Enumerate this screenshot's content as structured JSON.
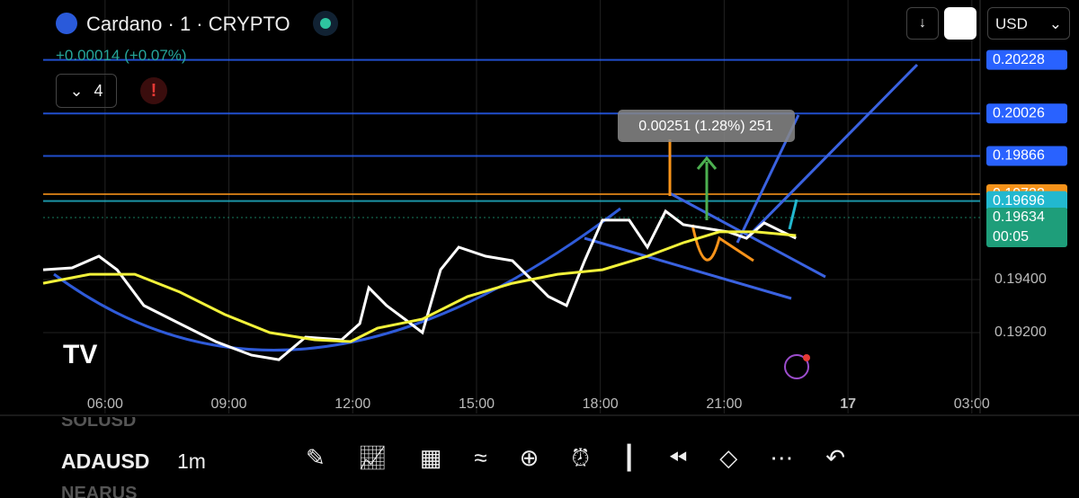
{
  "header": {
    "title": "Cardano · 1 · CRYPTO",
    "change": "+0.00014 (+0.07%)",
    "indicator_count": "4",
    "currency": "USD"
  },
  "measure_label": "0.00251 (1.28%) 251",
  "countdown": "00:05",
  "chart_data": {
    "type": "line",
    "xlim": [
      4.5,
      27.2
    ],
    "xticks": [
      {
        "value": 6,
        "label": "06:00"
      },
      {
        "value": 9,
        "label": "09:00"
      },
      {
        "value": 12,
        "label": "12:00"
      },
      {
        "value": 15,
        "label": "15:00"
      },
      {
        "value": 18,
        "label": "18:00"
      },
      {
        "value": 21,
        "label": "21:00"
      },
      {
        "value": 24,
        "label": "17"
      },
      {
        "value": 27,
        "label": "03:00"
      }
    ],
    "ylim": [
      0.18895,
      0.20454
    ],
    "yticks": [
      {
        "value": 0.192,
        "label": "0.19200"
      },
      {
        "value": 0.194,
        "label": "0.19400"
      }
    ],
    "grid": true,
    "series": [
      {
        "color": "#ffffff",
        "x": [
          4.5,
          5.2,
          5.85,
          6.29,
          6.94,
          7.81,
          8.68,
          9.55,
          10.21,
          10.86,
          11.73,
          12.17,
          12.39,
          12.82,
          13.26,
          13.69,
          14.13,
          14.57,
          15.22,
          15.87,
          16.31,
          16.74,
          17.18,
          17.62,
          18.05,
          18.7,
          19.14,
          19.58,
          20.01,
          20.67,
          21.1,
          21.54,
          21.97,
          22.41,
          22.74
        ],
        "values": [
          0.19437,
          0.19444,
          0.19488,
          0.19437,
          0.19302,
          0.19234,
          0.19166,
          0.19115,
          0.19098,
          0.19183,
          0.19173,
          0.19234,
          0.19369,
          0.19302,
          0.19251,
          0.192,
          0.19437,
          0.19522,
          0.19488,
          0.19471,
          0.19403,
          0.19336,
          0.19302,
          0.19471,
          0.19624,
          0.19624,
          0.19522,
          0.19658,
          0.19607,
          0.1959,
          0.1958,
          0.19556,
          0.19614,
          0.1958,
          0.19556
        ]
      },
      {
        "color": "#f2f23a",
        "x": [
          4.5,
          5.63,
          6.72,
          7.81,
          8.9,
          9.99,
          11.08,
          11.95,
          12.6,
          13.69,
          14.78,
          15.87,
          16.96,
          18.05,
          19.14,
          20.01,
          20.88,
          21.76,
          22.74
        ],
        "values": [
          0.19386,
          0.1942,
          0.1942,
          0.19353,
          0.19268,
          0.192,
          0.19173,
          0.19166,
          0.19217,
          0.19251,
          0.19336,
          0.19386,
          0.1942,
          0.19437,
          0.19488,
          0.19539,
          0.1958,
          0.1958,
          0.19566
        ]
      }
    ],
    "price_lines": [
      {
        "value": 0.20228,
        "color": "#2962ff"
      },
      {
        "value": 0.20026,
        "color": "#2962ff"
      },
      {
        "value": 0.19866,
        "color": "#2962ff"
      },
      {
        "value": 0.19722,
        "color": "#f7931a"
      },
      {
        "value": 0.19696,
        "color": "#22b8cf"
      },
      {
        "value": 0.19634,
        "color": "#1e9e7a"
      }
    ]
  },
  "symbols": [
    "SOLUSD",
    "ADAUSD",
    "NEARUS"
  ],
  "interval": "1m"
}
